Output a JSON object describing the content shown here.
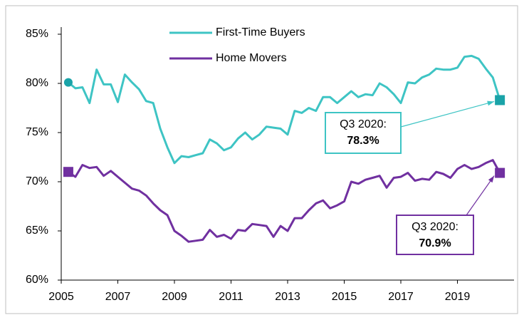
{
  "chart_data": {
    "type": "line",
    "xlim": [
      2005,
      2021
    ],
    "xticks": [
      2005,
      2007,
      2009,
      2011,
      2013,
      2015,
      2017,
      2019
    ],
    "ylim": [
      60,
      85
    ],
    "yticks": [
      {
        "value": 60,
        "label": "60%"
      },
      {
        "value": 65,
        "label": "65%"
      },
      {
        "value": 70,
        "label": "70%"
      },
      {
        "value": 75,
        "label": "75%"
      },
      {
        "value": 80,
        "label": "80%"
      },
      {
        "value": 85,
        "label": "85%"
      }
    ],
    "legend": "top-center",
    "x": [
      2005.25,
      2005.5,
      2005.75,
      2006,
      2006.25,
      2006.5,
      2006.75,
      2007,
      2007.25,
      2007.5,
      2007.75,
      2008,
      2008.25,
      2008.5,
      2008.75,
      2009,
      2009.25,
      2009.5,
      2009.75,
      2010,
      2010.25,
      2010.5,
      2010.75,
      2011,
      2011.25,
      2011.5,
      2011.75,
      2012,
      2012.25,
      2012.5,
      2012.75,
      2013,
      2013.25,
      2013.5,
      2013.75,
      2014,
      2014.25,
      2014.5,
      2014.75,
      2015,
      2015.25,
      2015.5,
      2015.75,
      2016,
      2016.25,
      2016.5,
      2016.75,
      2017,
      2017.25,
      2017.5,
      2017.75,
      2018,
      2018.25,
      2018.5,
      2018.75,
      2019,
      2019.25,
      2019.5,
      2019.75,
      2020,
      2020.25,
      2020.5
    ],
    "series": [
      {
        "name": "First-Time Buyers",
        "color": "#3ec4c4",
        "marker_color": "#1aa3a8",
        "start_marker": "circle",
        "end_marker": "square",
        "values": [
          80.1,
          79.5,
          79.6,
          78.0,
          81.4,
          79.9,
          79.9,
          78.1,
          80.9,
          80.1,
          79.4,
          78.2,
          78.0,
          75.4,
          73.5,
          71.9,
          72.6,
          72.5,
          72.7,
          72.9,
          74.3,
          73.9,
          73.2,
          73.5,
          74.4,
          75.0,
          74.3,
          74.8,
          75.6,
          75.5,
          75.4,
          74.8,
          77.2,
          77.0,
          77.5,
          77.2,
          78.6,
          78.6,
          78.0,
          78.6,
          79.2,
          78.6,
          78.9,
          78.8,
          80.0,
          79.6,
          78.9,
          78.0,
          80.1,
          80.0,
          80.6,
          80.9,
          81.5,
          81.4,
          81.4,
          81.6,
          82.7,
          82.8,
          82.5,
          81.5,
          80.6,
          78.3
        ]
      },
      {
        "name": "Home Movers",
        "color": "#7030a0",
        "marker_color": "#7030a0",
        "start_marker": "square",
        "end_marker": "square",
        "values": [
          71.0,
          70.5,
          71.7,
          71.4,
          71.5,
          70.6,
          71.1,
          70.5,
          69.9,
          69.3,
          69.1,
          68.6,
          67.8,
          67.1,
          66.6,
          65.0,
          64.5,
          63.9,
          64.0,
          64.1,
          65.1,
          64.4,
          64.6,
          64.2,
          65.1,
          65.0,
          65.7,
          65.6,
          65.5,
          64.4,
          65.5,
          65.0,
          66.3,
          66.3,
          67.1,
          67.8,
          68.1,
          67.3,
          67.6,
          68.0,
          70.0,
          69.8,
          70.2,
          70.4,
          70.6,
          69.4,
          70.4,
          70.5,
          70.9,
          70.1,
          70.3,
          70.2,
          71.0,
          70.8,
          70.4,
          71.3,
          71.7,
          71.3,
          71.5,
          71.9,
          72.2,
          70.9
        ]
      }
    ],
    "annotations": [
      {
        "text": "Q3 2020:",
        "value_label": "78.3%"
      },
      {
        "text": "Q3 2020:",
        "value_label": "70.9%"
      }
    ]
  }
}
